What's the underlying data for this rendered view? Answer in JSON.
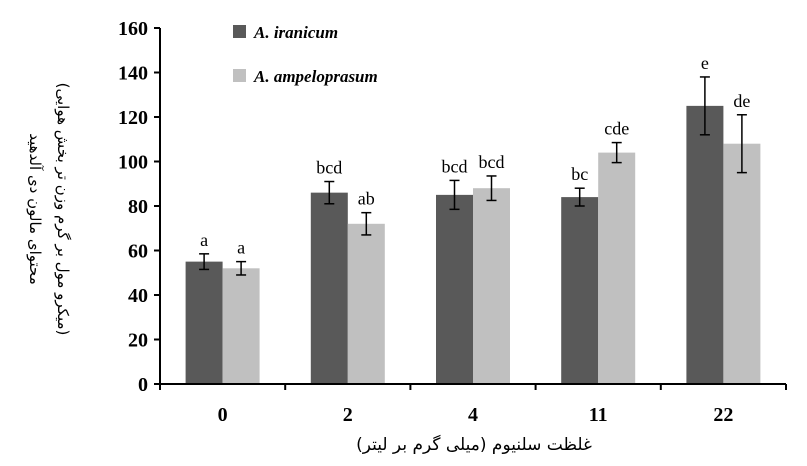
{
  "chart_data": {
    "type": "bar",
    "categories": [
      "0",
      "2",
      "4",
      "11",
      "22"
    ],
    "series": [
      {
        "name": "A. iranicum",
        "color": "#595959",
        "values": [
          55,
          86,
          85,
          84,
          125
        ],
        "errors": [
          3.5,
          5,
          6.5,
          4,
          13
        ],
        "labels": [
          "a",
          "bcd",
          "bcd",
          "bc",
          "e"
        ]
      },
      {
        "name": "A. ampeloprasum",
        "color": "#c0c0c0",
        "values": [
          52,
          72,
          88,
          104,
          108
        ],
        "errors": [
          3,
          5,
          5.5,
          4.5,
          13
        ],
        "labels": [
          "a",
          "ab",
          "bcd",
          "cde",
          "de"
        ]
      }
    ],
    "ylim": [
      0,
      160
    ],
    "yticks": [
      "0",
      "20",
      "40",
      "60",
      "80",
      "100",
      "120",
      "140",
      "160"
    ],
    "xlabel": "غلظت سلنیوم (میلی گرم بر لیتر)",
    "ylabel_line1": "محتوای مالون دی آلدهید",
    "ylabel_line2": "(میکرو مول بر گرم وزن تر بخش هوایی)",
    "legend_position": "top-left",
    "grid": false
  }
}
